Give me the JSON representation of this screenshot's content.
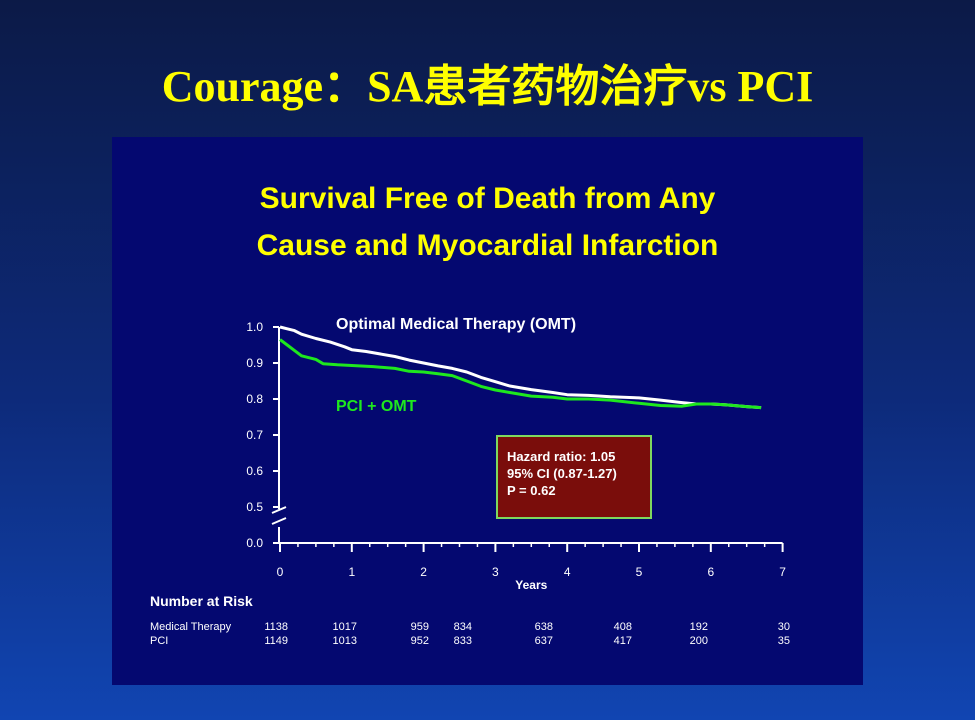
{
  "slide": {
    "title": "Courage：SA患者药物治疗vs PCI"
  },
  "chart_data": {
    "type": "line",
    "title_lines": [
      "Survival Free of Death from Any",
      "Cause and Myocardial Infarction"
    ],
    "xlabel": "Years",
    "xlim": [
      0,
      7
    ],
    "ylim": [
      0.0,
      1.0
    ],
    "x_ticks": [
      0,
      1,
      2,
      3,
      4,
      5,
      6,
      7
    ],
    "y_ticks": [
      "0.0",
      "0.5",
      "0.6",
      "0.7",
      "0.8",
      "0.9",
      "1.0"
    ],
    "axis_break": true,
    "series": [
      {
        "name": "Optimal Medical Therapy (OMT)",
        "color": "#ffffff",
        "x": [
          0,
          0.1,
          0.2,
          0.3,
          0.5,
          0.7,
          0.9,
          1.0,
          1.2,
          1.4,
          1.6,
          1.8,
          2.0,
          2.2,
          2.4,
          2.6,
          2.8,
          3.0,
          3.2,
          3.5,
          3.8,
          4.0,
          4.3,
          4.6,
          5.0,
          5.3,
          5.6,
          5.8,
          6.0,
          6.2,
          6.5,
          6.7
        ],
        "y": [
          1.0,
          0.995,
          0.99,
          0.98,
          0.968,
          0.958,
          0.945,
          0.937,
          0.932,
          0.925,
          0.918,
          0.908,
          0.9,
          0.892,
          0.885,
          0.875,
          0.86,
          0.848,
          0.836,
          0.826,
          0.818,
          0.812,
          0.81,
          0.806,
          0.803,
          0.797,
          0.79,
          0.786,
          0.786,
          0.784,
          0.779,
          0.776
        ]
      },
      {
        "name": "PCI + OMT",
        "color": "#1ee81e",
        "x": [
          0,
          0.1,
          0.2,
          0.3,
          0.5,
          0.6,
          0.8,
          1.0,
          1.3,
          1.6,
          1.8,
          2.0,
          2.2,
          2.4,
          2.6,
          2.8,
          3.0,
          3.2,
          3.5,
          3.8,
          4.0,
          4.3,
          4.6,
          5.0,
          5.3,
          5.6,
          5.8,
          6.0,
          6.2,
          6.5,
          6.7
        ],
        "y": [
          0.965,
          0.95,
          0.935,
          0.92,
          0.91,
          0.898,
          0.895,
          0.893,
          0.89,
          0.885,
          0.877,
          0.875,
          0.87,
          0.865,
          0.85,
          0.835,
          0.825,
          0.818,
          0.808,
          0.805,
          0.8,
          0.8,
          0.797,
          0.788,
          0.782,
          0.78,
          0.786,
          0.786,
          0.784,
          0.779,
          0.776
        ]
      }
    ],
    "annotation": {
      "lines": [
        "Hazard ratio: 1.05",
        "95% CI (0.87-1.27)",
        "P = 0.62"
      ]
    },
    "number_at_risk": {
      "header": "Number at Risk",
      "rows": [
        {
          "label": "Medical Therapy",
          "values": [
            "1138",
            "1017",
            "959",
            "834",
            "638",
            "408",
            "192",
            "30"
          ]
        },
        {
          "label": "PCI",
          "values": [
            "1149",
            "1013",
            "952",
            "833",
            "637",
            "417",
            "200",
            "35"
          ]
        }
      ]
    }
  }
}
